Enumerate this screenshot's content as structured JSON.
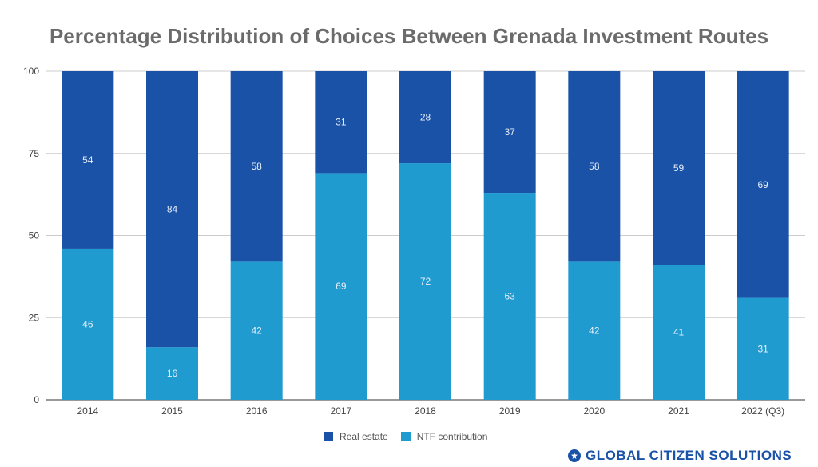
{
  "chart_data": {
    "type": "bar",
    "stacked": true,
    "title": "Percentage Distribution of Choices Between Grenada Investment Routes",
    "xlabel": "",
    "ylabel": "",
    "categories": [
      "2014",
      "2015",
      "2016",
      "2017",
      "2018",
      "2019",
      "2020",
      "2021",
      "2022 (Q3)"
    ],
    "series": [
      {
        "name": "NTF contribution",
        "color": "#1f9bd0",
        "values": [
          46,
          16,
          42,
          69,
          72,
          63,
          42,
          41,
          31
        ]
      },
      {
        "name": "Real estate",
        "color": "#1a52a8",
        "values": [
          54,
          84,
          58,
          31,
          28,
          37,
          58,
          59,
          69
        ]
      }
    ],
    "ylim": [
      0,
      100
    ],
    "yticks": [
      0,
      25,
      50,
      75,
      100
    ],
    "grid": true,
    "legend": "bottom"
  },
  "brand": {
    "name": "GLOBAL CITIZEN SOLUTIONS",
    "color": "#1a52a8"
  }
}
